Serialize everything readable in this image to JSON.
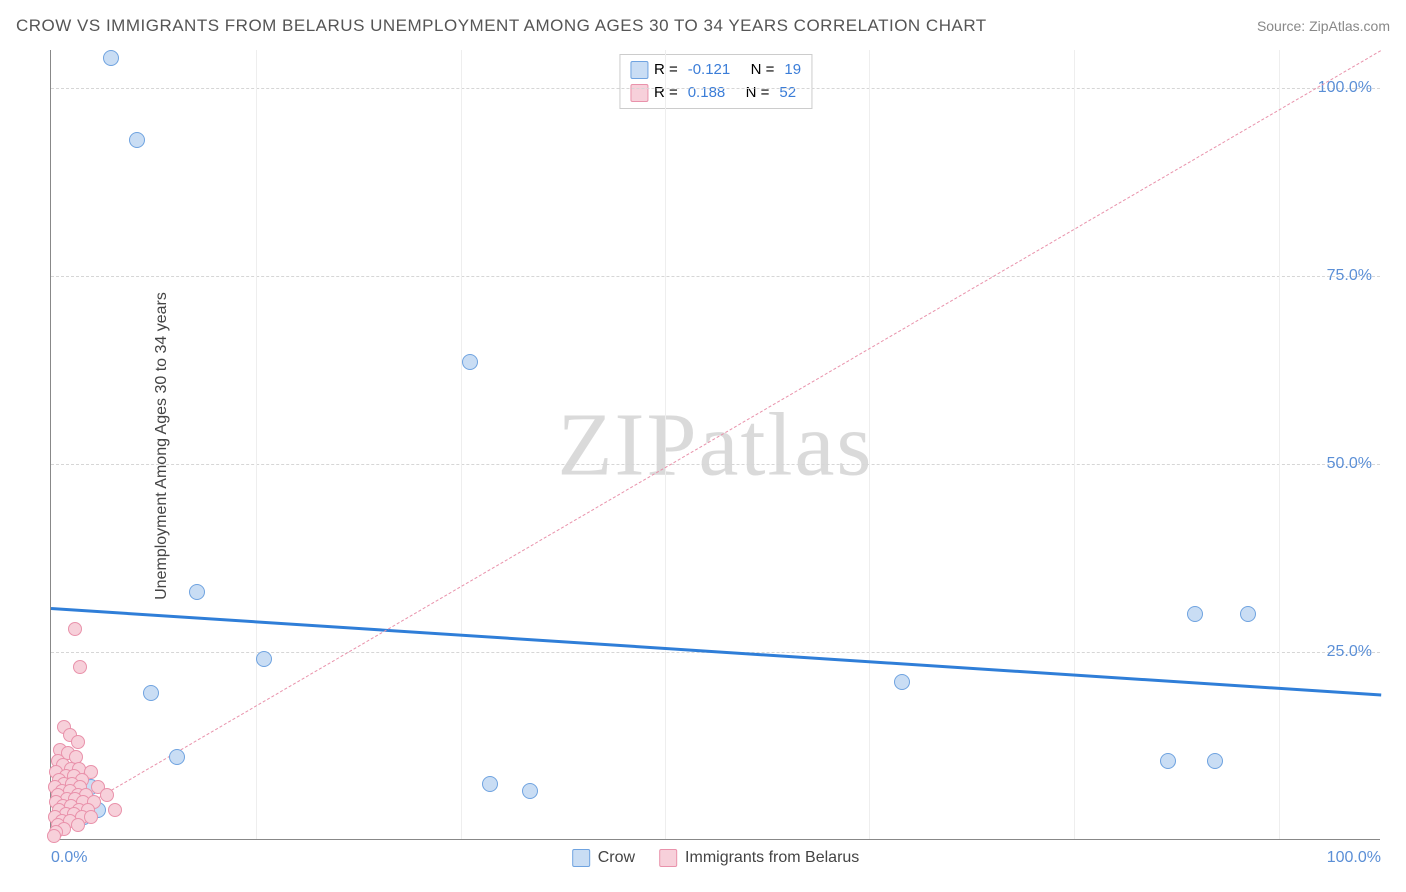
{
  "title": "CROW VS IMMIGRANTS FROM BELARUS UNEMPLOYMENT AMONG AGES 30 TO 34 YEARS CORRELATION CHART",
  "source_label": "Source:",
  "source_name": "ZipAtlas.com",
  "watermark": "ZIPatlas",
  "y_axis_label": "Unemployment Among Ages 30 to 34 years",
  "chart": {
    "type": "scatter",
    "xlim": [
      0,
      100
    ],
    "ylim": [
      0,
      105
    ],
    "x_ticks": [
      {
        "v": 0,
        "l": "0.0%"
      },
      {
        "v": 100,
        "l": "100.0%"
      }
    ],
    "x_minor_ticks": [
      15.4,
      30.8,
      46.2,
      61.5,
      76.9,
      92.3
    ],
    "y_ticks": [
      {
        "v": 25,
        "l": "25.0%"
      },
      {
        "v": 50,
        "l": "50.0%"
      },
      {
        "v": 75,
        "l": "75.0%"
      },
      {
        "v": 100,
        "l": "100.0%"
      }
    ],
    "background_color": "#ffffff",
    "grid_color": "#d6d6d6",
    "axis_color": "#888888",
    "tick_label_color": "#5b8fd6",
    "series": [
      {
        "name": "Crow",
        "legend_label": "Crow",
        "marker_fill": "#c9ddf4",
        "marker_stroke": "#6fa3e0",
        "marker_size": 16,
        "R": "-0.121",
        "N": "19",
        "trend": {
          "y_at_x0": 31,
          "y_at_x100": 19.5,
          "color": "#2f7ed8",
          "width": 3,
          "dash": "solid"
        },
        "points": [
          {
            "x": 4.5,
            "y": 104
          },
          {
            "x": 6.5,
            "y": 93
          },
          {
            "x": 31.5,
            "y": 63.5
          },
          {
            "x": 11,
            "y": 33
          },
          {
            "x": 86,
            "y": 30
          },
          {
            "x": 90,
            "y": 30
          },
          {
            "x": 16,
            "y": 24
          },
          {
            "x": 64,
            "y": 21
          },
          {
            "x": 7.5,
            "y": 19.5
          },
          {
            "x": 9.5,
            "y": 11
          },
          {
            "x": 84,
            "y": 10.5
          },
          {
            "x": 87.5,
            "y": 10.5
          },
          {
            "x": 33,
            "y": 7.5
          },
          {
            "x": 36,
            "y": 6.5
          },
          {
            "x": 2,
            "y": 9
          },
          {
            "x": 1.5,
            "y": 6
          },
          {
            "x": 3,
            "y": 7
          },
          {
            "x": 3.5,
            "y": 4
          },
          {
            "x": 2.5,
            "y": 3
          }
        ]
      },
      {
        "name": "Immigrants from Belarus",
        "legend_label": "Immigrants from Belarus",
        "marker_fill": "#f7d0da",
        "marker_stroke": "#e992ab",
        "marker_size": 14,
        "R": "0.188",
        "N": "52",
        "trend": {
          "y_at_x0": 2,
          "y_at_x100": 105,
          "color": "#e992ab",
          "width": 1.5,
          "dash": "dashed"
        },
        "points": [
          {
            "x": 1.8,
            "y": 28
          },
          {
            "x": 2.2,
            "y": 23
          },
          {
            "x": 1.0,
            "y": 15
          },
          {
            "x": 1.4,
            "y": 14
          },
          {
            "x": 2.0,
            "y": 13
          },
          {
            "x": 0.7,
            "y": 12
          },
          {
            "x": 1.3,
            "y": 11.5
          },
          {
            "x": 1.9,
            "y": 11
          },
          {
            "x": 0.5,
            "y": 10.5
          },
          {
            "x": 0.9,
            "y": 10
          },
          {
            "x": 1.5,
            "y": 9.5
          },
          {
            "x": 2.1,
            "y": 9.5
          },
          {
            "x": 3.0,
            "y": 9
          },
          {
            "x": 0.4,
            "y": 9
          },
          {
            "x": 1.1,
            "y": 8.5
          },
          {
            "x": 1.7,
            "y": 8.5
          },
          {
            "x": 2.3,
            "y": 8
          },
          {
            "x": 0.6,
            "y": 8
          },
          {
            "x": 1.0,
            "y": 7.5
          },
          {
            "x": 1.6,
            "y": 7.5
          },
          {
            "x": 2.2,
            "y": 7
          },
          {
            "x": 3.5,
            "y": 7
          },
          {
            "x": 0.3,
            "y": 7
          },
          {
            "x": 0.8,
            "y": 6.5
          },
          {
            "x": 1.4,
            "y": 6.5
          },
          {
            "x": 2.0,
            "y": 6
          },
          {
            "x": 2.6,
            "y": 6
          },
          {
            "x": 4.2,
            "y": 6
          },
          {
            "x": 0.5,
            "y": 6
          },
          {
            "x": 1.2,
            "y": 5.5
          },
          {
            "x": 1.8,
            "y": 5.5
          },
          {
            "x": 2.4,
            "y": 5
          },
          {
            "x": 3.2,
            "y": 5
          },
          {
            "x": 0.4,
            "y": 5
          },
          {
            "x": 0.9,
            "y": 4.5
          },
          {
            "x": 1.5,
            "y": 4.5
          },
          {
            "x": 2.1,
            "y": 4
          },
          {
            "x": 2.8,
            "y": 4
          },
          {
            "x": 4.8,
            "y": 4
          },
          {
            "x": 0.6,
            "y": 4
          },
          {
            "x": 1.1,
            "y": 3.5
          },
          {
            "x": 1.7,
            "y": 3.5
          },
          {
            "x": 2.3,
            "y": 3
          },
          {
            "x": 3.0,
            "y": 3
          },
          {
            "x": 0.3,
            "y": 3
          },
          {
            "x": 0.8,
            "y": 2.5
          },
          {
            "x": 1.4,
            "y": 2.5
          },
          {
            "x": 2.0,
            "y": 2
          },
          {
            "x": 0.5,
            "y": 2
          },
          {
            "x": 1.0,
            "y": 1.5
          },
          {
            "x": 0.4,
            "y": 1
          },
          {
            "x": 0.2,
            "y": 0.5
          }
        ]
      }
    ]
  },
  "legend_top_labels": {
    "R": "R =",
    "N": "N ="
  }
}
